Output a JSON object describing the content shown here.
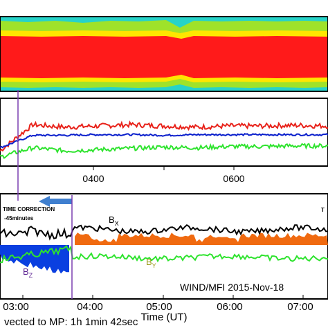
{
  "chart_data": [
    {
      "type": "heatmap",
      "panel": "spectrogram",
      "bands": [
        {
          "name": "outer",
          "color": "#27d3c9"
        },
        {
          "name": "mid",
          "color": "#9fe22a"
        },
        {
          "name": "inner",
          "color": "#ffe600"
        },
        {
          "name": "core",
          "color": "#ff1a1a"
        }
      ]
    },
    {
      "type": "line",
      "panel": "field-components-top",
      "xlim": [
        "01:15",
        "07:45"
      ],
      "x_tick_labels": [
        "0400",
        "0600"
      ],
      "series": [
        {
          "color": "#e8221a",
          "values_approx": [
            0.2,
            0.62,
            0.58,
            0.6,
            0.62,
            0.6,
            0.58,
            0.6,
            0.6,
            0.61,
            0.6
          ]
        },
        {
          "color": "#0a1fcc",
          "values_approx": [
            0.25,
            0.45,
            0.45,
            0.46,
            0.46,
            0.45,
            0.46,
            0.46,
            0.46,
            0.46,
            0.46
          ]
        },
        {
          "color": "#2ee32e",
          "values_approx": [
            0.1,
            0.25,
            0.2,
            0.22,
            0.24,
            0.26,
            0.25,
            0.27,
            0.27,
            0.28,
            0.28
          ]
        }
      ]
    },
    {
      "type": "line",
      "panel": "field-components-bottom",
      "xlabel": "Time (UT)",
      "xlim": [
        "02:45",
        "07:45"
      ],
      "x_tick_labels": [
        "03:00",
        "04:00",
        "05:00",
        "06:00",
        "07:00"
      ],
      "series": [
        {
          "name": "B_X",
          "color": "#000000"
        },
        {
          "name": "B_Y",
          "color": "#2ee32e"
        },
        {
          "name": "B_Z",
          "color": "#0a3fe0",
          "fill_negative": "#0a3fe0",
          "fill_positive": "#f06a10"
        }
      ],
      "annotations": {
        "time_correction": "TIME CORRECTION",
        "time_correction_amount": "-45minutes",
        "source": "WIND/MFI 2015-Nov-18",
        "footer": "vected to MP: 1h 1min 42sec",
        "clipped_right": "T"
      }
    }
  ],
  "labels": {
    "bx_main": "B",
    "bx_sub": "X",
    "by_main": "B",
    "by_sub": "Y",
    "bz_main": "B",
    "bz_sub": "Z"
  },
  "colors": {
    "correction_line": "#7a3fb0",
    "arrow": "#3f7fcf"
  }
}
